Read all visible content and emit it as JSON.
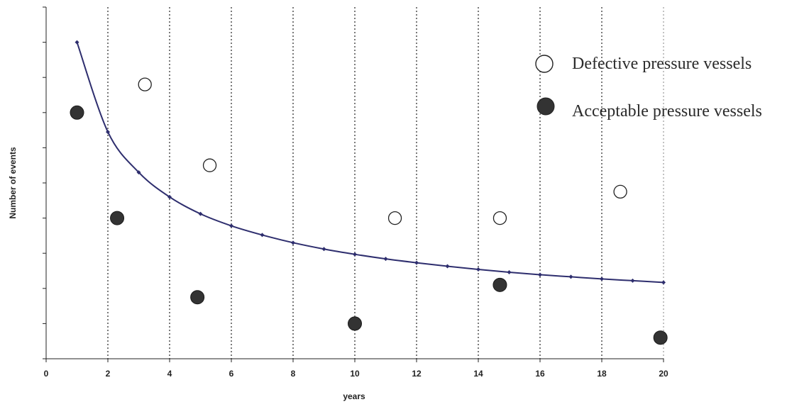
{
  "chart_data": {
    "type": "scatter",
    "xlabel": "years",
    "ylabel": "Number of events",
    "xlim": [
      0,
      20
    ],
    "ylim": [
      0,
      10
    ],
    "x_ticks": [
      0,
      2,
      4,
      6,
      8,
      10,
      12,
      14,
      16,
      18,
      20
    ],
    "y_tick_count": 10,
    "y_tick_labels_shown": false,
    "grid": "vertical dotted lines at even years",
    "legend_position": "top-right",
    "line_color": "#2e2e6e",
    "series": [
      {
        "name": "Defective pressure vessels",
        "marker": "open-circle",
        "color": "#222222",
        "points": [
          {
            "x": 3.2,
            "y": 7.8
          },
          {
            "x": 5.3,
            "y": 5.5
          },
          {
            "x": 11.3,
            "y": 4.0
          },
          {
            "x": 14.7,
            "y": 4.0
          },
          {
            "x": 18.6,
            "y": 4.75
          }
        ]
      },
      {
        "name": "Acceptable pressure vessels",
        "marker": "filled-circle",
        "color": "#333333",
        "points": [
          {
            "x": 1.0,
            "y": 7.0
          },
          {
            "x": 2.3,
            "y": 4.0
          },
          {
            "x": 4.9,
            "y": 1.75
          },
          {
            "x": 10.0,
            "y": 1.0
          },
          {
            "x": 14.7,
            "y": 2.1
          },
          {
            "x": 19.9,
            "y": 0.6
          }
        ]
      },
      {
        "marker": "line-with-diamonds",
        "color": "#2e2e6e",
        "points": [
          {
            "x": 1,
            "y": 9.0
          },
          {
            "x": 2,
            "y": 6.45
          },
          {
            "x": 3,
            "y": 5.3
          },
          {
            "x": 4,
            "y": 4.6
          },
          {
            "x": 5,
            "y": 4.12
          },
          {
            "x": 6,
            "y": 3.78
          },
          {
            "x": 7,
            "y": 3.52
          },
          {
            "x": 8,
            "y": 3.3
          },
          {
            "x": 9,
            "y": 3.12
          },
          {
            "x": 10,
            "y": 2.97
          },
          {
            "x": 11,
            "y": 2.84
          },
          {
            "x": 12,
            "y": 2.73
          },
          {
            "x": 13,
            "y": 2.63
          },
          {
            "x": 14,
            "y": 2.54
          },
          {
            "x": 15,
            "y": 2.46
          },
          {
            "x": 16,
            "y": 2.39
          },
          {
            "x": 17,
            "y": 2.33
          },
          {
            "x": 18,
            "y": 2.27
          },
          {
            "x": 19,
            "y": 2.22
          },
          {
            "x": 20,
            "y": 2.17
          }
        ]
      }
    ]
  }
}
